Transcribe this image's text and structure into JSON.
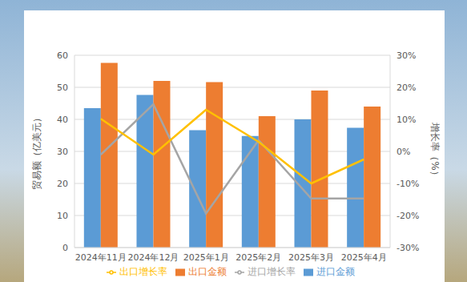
{
  "chart_data": {
    "type": "bar",
    "categories": [
      "2024年11月",
      "2024年12月",
      "2025年1月",
      "2025年2月",
      "2025年3月",
      "2025年4月"
    ],
    "ylabel": "贸易额（亿美元）",
    "y2label": "增长率（%）",
    "ylim": [
      0,
      60
    ],
    "yticks": [
      0,
      10,
      20,
      30,
      40,
      50,
      60
    ],
    "y2lim": [
      -30,
      30
    ],
    "y2ticks": [
      {
        "value": -30,
        "label": "-30%"
      },
      {
        "value": -20,
        "label": "-20%"
      },
      {
        "value": -10,
        "label": "-10%"
      },
      {
        "value": 0,
        "label": "0%"
      },
      {
        "value": 10,
        "label": "10%"
      },
      {
        "value": 20,
        "label": "20%"
      },
      {
        "value": 30,
        "label": "30%"
      }
    ],
    "grid": true,
    "legend": "bottom",
    "series": [
      {
        "name": "进口金额",
        "type": "bar",
        "color": "#5b9bd5",
        "values": [
          43.5,
          47.6,
          36.6,
          34.8,
          40,
          37.4
        ]
      },
      {
        "name": "出口金额",
        "type": "bar",
        "color": "#ed7d31",
        "values": [
          57.6,
          52,
          51.6,
          41,
          49,
          44
        ]
      },
      {
        "name": "进口增长率",
        "type": "line",
        "axis": "y2",
        "color": "#a5a5a5",
        "values": [
          -1,
          14.7,
          -19.4,
          3.5,
          -14.7,
          -14.7
        ]
      },
      {
        "name": "出口增长率",
        "type": "line",
        "axis": "y2",
        "color": "#ffc000",
        "values": [
          10.2,
          -1,
          13,
          3,
          -10,
          -2.5
        ]
      }
    ]
  }
}
